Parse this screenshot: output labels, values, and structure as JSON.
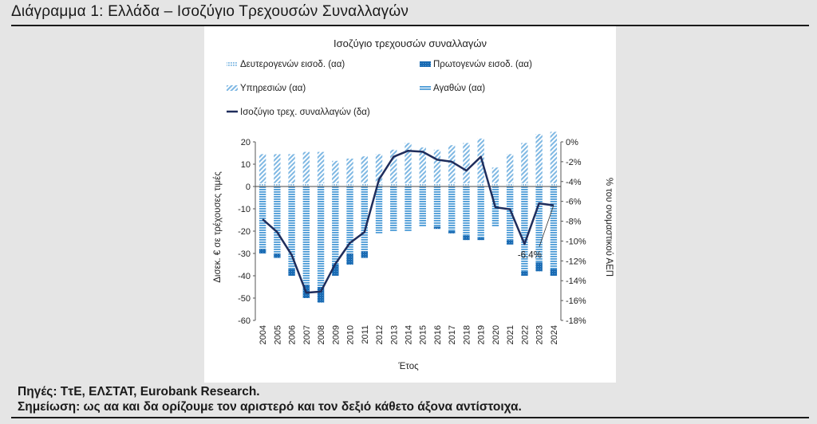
{
  "heading": "Διάγραμμα 1: Ελλάδα – Ισοζύγιο Τρεχουσών Συναλλαγών",
  "sources": "Πηγές: ΤτΕ, ΕΛΣΤΑΤ, Eurobank Research.",
  "note": "Σημείωση: ως αα και δα ορίζουμε τον αριστερό και τον δεξιό κάθετο άξονα αντίστοιχα.",
  "colors": {
    "secondary_income": "#7fb8e3",
    "primary_income": "#1a6bb3",
    "services": "#7fb8e3",
    "goods": "#4a9ad6",
    "balance_line": "#1f2d5c"
  },
  "chart_data": {
    "type": "bar",
    "title": "Ισοζύγιο τρεχουσών συναλλαγών",
    "xlabel": "Έτος",
    "ylabel": "Δισεκ. € σε τρέχουσες τιμές",
    "y2label": "% του ονομαστικού ΑΕΠ",
    "ylim": [
      -60,
      20
    ],
    "y2lim": [
      -18,
      0
    ],
    "yticks": [
      "20",
      "10",
      "0",
      "-10",
      "-20",
      "-30",
      "-40",
      "-50",
      "-60"
    ],
    "y2ticks": [
      "0%",
      "-2%",
      "-4%",
      "-6%",
      "-8%",
      "-10%",
      "-12%",
      "-14%",
      "-16%",
      "-18%"
    ],
    "grid": false,
    "legend_position": "top",
    "categories": [
      "2004",
      "2005",
      "2006",
      "2007",
      "2008",
      "2009",
      "2010",
      "2011",
      "2012",
      "2013",
      "2014",
      "2015",
      "2016",
      "2017",
      "2018",
      "2019",
      "2020",
      "2021",
      "2022",
      "2023",
      "2024"
    ],
    "series": [
      {
        "name": "Δευτερογενών εισοδ. (αα)",
        "axis": "left",
        "stack": "pos",
        "values": [
          1.5,
          1.5,
          1.5,
          1.5,
          1.5,
          1.5,
          1.5,
          1.5,
          1.5,
          1.5,
          1.5,
          1.5,
          1.5,
          1.5,
          1.5,
          1.5,
          1.5,
          1.5,
          1.5,
          1.5,
          1.5
        ]
      },
      {
        "name": "Υπηρεσιών (αα)",
        "axis": "left",
        "stack": "pos",
        "values": [
          13,
          13,
          13,
          14,
          14,
          10,
          11,
          12,
          13,
          15,
          18,
          16,
          15,
          17,
          18,
          20,
          7,
          13,
          18,
          22,
          23
        ]
      },
      {
        "name": "Αγαθών (αα)",
        "axis": "left",
        "stack": "neg",
        "values": [
          -28,
          -30,
          -37,
          -44,
          -45,
          -35,
          -30,
          -29,
          -21,
          -20,
          -20,
          -18,
          -18,
          -20,
          -22,
          -23,
          -18,
          -24,
          -38,
          -34,
          -37
        ]
      },
      {
        "name": "Πρωτογενών εισοδ. (αα)",
        "axis": "left",
        "stack": "neg",
        "values": [
          -2,
          -2,
          -3,
          -6,
          -7,
          -5,
          -5,
          -3,
          0,
          0,
          0,
          0,
          -1,
          -1,
          -2,
          -1,
          0,
          -2,
          -2,
          -4,
          -3
        ]
      },
      {
        "name": "Ισοζύγιο τρεχ. συναλλαγών (δα)",
        "axis": "right",
        "type": "line",
        "values": [
          -7.8,
          -9.1,
          -11.4,
          -15.2,
          -15.1,
          -12.3,
          -10.2,
          -9.1,
          -3.8,
          -1.5,
          -0.9,
          -1.0,
          -1.8,
          -2.0,
          -2.9,
          -1.5,
          -6.6,
          -6.8,
          -10.3,
          -6.2,
          -6.4
        ]
      }
    ],
    "annotations": [
      {
        "text": "-6.4%",
        "category": "2024",
        "value": -6.4
      }
    ],
    "legend": [
      "Δευτερογενών εισοδ. (αα)",
      "Πρωτογενών εισοδ. (αα)",
      "Υπηρεσιών (αα)",
      "Αγαθών (αα)",
      "Ισοζύγιο τρεχ. συναλλαγών (δα)"
    ]
  }
}
